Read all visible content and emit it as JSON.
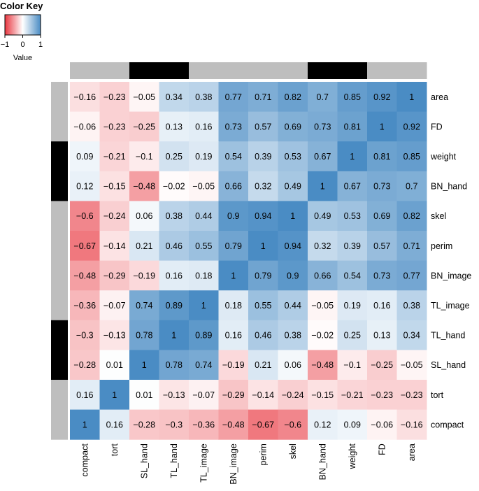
{
  "chart_data": {
    "type": "heatmap",
    "columns": [
      "compact",
      "tort",
      "SL_hand",
      "TL_hand",
      "TL_image",
      "BN_image",
      "perim",
      "skel",
      "BN_hand",
      "weight",
      "FD",
      "area"
    ],
    "rows": [
      "area",
      "FD",
      "weight",
      "BN_hand",
      "skel",
      "perim",
      "BN_image",
      "TL_image",
      "TL_hand",
      "SL_hand",
      "tort",
      "compact"
    ],
    "values": [
      [
        -0.16,
        -0.23,
        -0.05,
        0.34,
        0.38,
        0.77,
        0.71,
        0.82,
        0.7,
        0.85,
        0.92,
        1
      ],
      [
        -0.06,
        -0.23,
        -0.25,
        0.13,
        0.16,
        0.73,
        0.57,
        0.69,
        0.73,
        0.81,
        1,
        0.92
      ],
      [
        0.09,
        -0.21,
        -0.1,
        0.25,
        0.19,
        0.54,
        0.39,
        0.53,
        0.67,
        1,
        0.81,
        0.85
      ],
      [
        0.12,
        -0.15,
        -0.48,
        -0.02,
        -0.05,
        0.66,
        0.32,
        0.49,
        1,
        0.67,
        0.73,
        0.7
      ],
      [
        -0.6,
        -0.24,
        0.06,
        0.38,
        0.44,
        0.9,
        0.94,
        1,
        0.49,
        0.53,
        0.69,
        0.82
      ],
      [
        -0.67,
        -0.14,
        0.21,
        0.46,
        0.55,
        0.79,
        1,
        0.94,
        0.32,
        0.39,
        0.57,
        0.71
      ],
      [
        -0.48,
        -0.29,
        -0.19,
        0.16,
        0.18,
        1,
        0.79,
        0.9,
        0.66,
        0.54,
        0.73,
        0.77
      ],
      [
        -0.36,
        -0.07,
        0.74,
        0.89,
        1,
        0.18,
        0.55,
        0.44,
        -0.05,
        0.19,
        0.16,
        0.38
      ],
      [
        -0.3,
        -0.13,
        0.78,
        1,
        0.89,
        0.16,
        0.46,
        0.38,
        -0.02,
        0.25,
        0.13,
        0.34
      ],
      [
        -0.28,
        0.01,
        1,
        0.78,
        0.74,
        -0.19,
        0.21,
        0.06,
        -0.48,
        -0.1,
        -0.25,
        -0.05
      ],
      [
        0.16,
        1,
        0.01,
        -0.13,
        -0.07,
        -0.29,
        -0.14,
        -0.24,
        -0.15,
        -0.21,
        -0.23,
        -0.23
      ],
      [
        1,
        0.16,
        -0.28,
        -0.3,
        -0.36,
        -0.48,
        -0.67,
        -0.6,
        0.12,
        0.09,
        -0.06,
        -0.16
      ]
    ],
    "value_range": [
      -1,
      1
    ],
    "color_scale": {
      "low": "#e8363f",
      "mid": "#ffffff",
      "high": "#4a8cc4"
    },
    "column_side_colors": [
      "#bebebe",
      "#bebebe",
      "#000000",
      "#000000",
      "#bebebe",
      "#bebebe",
      "#bebebe",
      "#bebebe",
      "#000000",
      "#000000",
      "#bebebe",
      "#bebebe"
    ],
    "row_side_colors": [
      "#bebebe",
      "#bebebe",
      "#000000",
      "#000000",
      "#bebebe",
      "#bebebe",
      "#bebebe",
      "#bebebe",
      "#000000",
      "#000000",
      "#bebebe",
      "#bebebe"
    ],
    "color_key": {
      "title": "Color Key",
      "xlabel": "Value",
      "ticks": [
        "−1",
        "0",
        "1"
      ]
    }
  }
}
